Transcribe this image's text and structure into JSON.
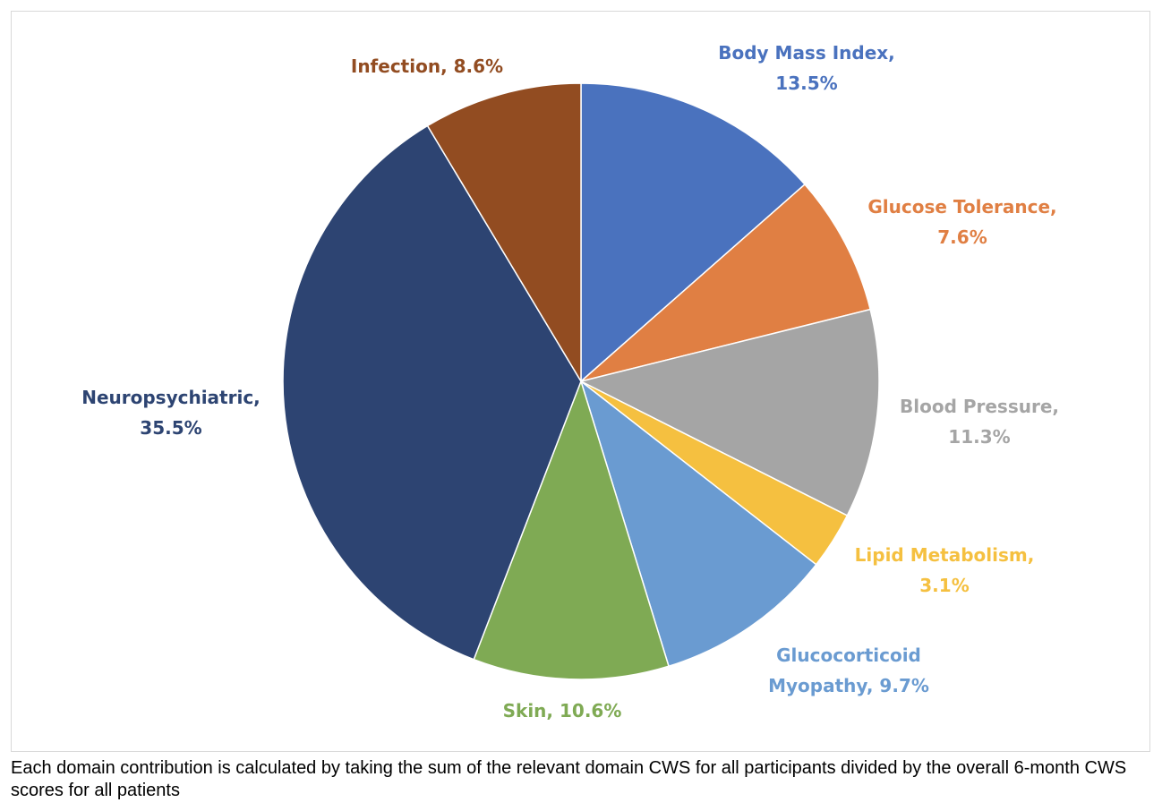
{
  "chart_data": {
    "type": "pie",
    "title": "",
    "start_angle_deg": 0,
    "direction": "clockwise",
    "slices": [
      {
        "label_lines": [
          "Body Mass Index,",
          "13.5%"
        ],
        "value": 13.5,
        "color": "#4a72be"
      },
      {
        "label_lines": [
          "Glucose Tolerance,",
          "7.6%"
        ],
        "value": 7.6,
        "color": "#e07f43"
      },
      {
        "label_lines": [
          "Blood Pressure,",
          "11.3%"
        ],
        "value": 11.3,
        "color": "#a5a5a5"
      },
      {
        "label_lines": [
          "Lipid Metabolism,",
          "3.1%"
        ],
        "value": 3.1,
        "color": "#f5c040"
      },
      {
        "label_lines": [
          "Glucocorticoid",
          "Myopathy, 9.7%"
        ],
        "value": 9.7,
        "color": "#6a9bd1"
      },
      {
        "label_lines": [
          "Skin, 10.6%"
        ],
        "value": 10.6,
        "color": "#7faa54"
      },
      {
        "label_lines": [
          "Neuropsychiatric,",
          "35.5%"
        ],
        "value": 35.5,
        "color": "#2d4472"
      },
      {
        "label_lines": [
          "Infection, 8.6%"
        ],
        "value": 8.6,
        "color": "#924c21"
      }
    ],
    "label_colors": [
      "#4a72be",
      "#e07f43",
      "#a5a5a5",
      "#f5c040",
      "#6a9bd1",
      "#7faa54",
      "#2d4472",
      "#924c21"
    ]
  },
  "footnote": "Each domain contribution is calculated by taking the sum of the relevant domain CWS for all participants divided by the overall 6-month CWS scores for all patients"
}
